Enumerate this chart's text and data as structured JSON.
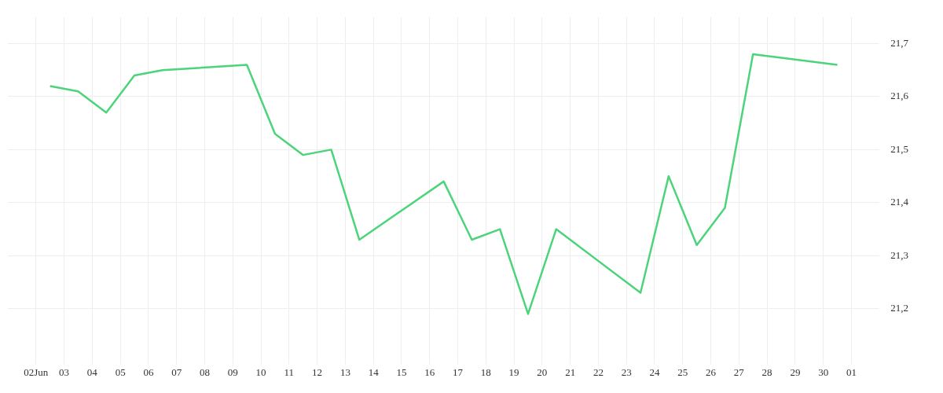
{
  "chart_data": {
    "type": "line",
    "x": [
      "--06-02T12:00",
      "--06-03T12:00",
      "--06-04T12:00",
      "--06-05T12:00",
      "--06-06T12:00",
      "--06-09T12:00",
      "--06-10T12:00",
      "--06-11T12:00",
      "--06-12T12:00",
      "--06-13T12:00",
      "--06-16T12:00",
      "--06-17T12:00",
      "--06-18T12:00",
      "--06-19T12:00",
      "--06-20T12:00",
      "--06-23T12:00",
      "--06-24T12:00",
      "--06-25T12:00",
      "--06-26T12:00",
      "--06-27T12:00",
      "--06-30T12:00"
    ],
    "series": [
      {
        "color": "#4cd47a",
        "values": [
          21.62,
          21.61,
          21.57,
          21.64,
          21.65,
          21.66,
          21.53,
          21.49,
          21.5,
          21.33,
          21.44,
          21.33,
          21.35,
          21.19,
          21.35,
          21.23,
          21.45,
          21.32,
          21.39,
          21.68,
          21.66
        ]
      }
    ],
    "xlim": [
      "--06-01",
      "--07-02"
    ],
    "xticks": [
      {
        "value": "--06-02",
        "label": "02Jun"
      },
      {
        "value": "--06-03",
        "label": "03"
      },
      {
        "value": "--06-04",
        "label": "04"
      },
      {
        "value": "--06-05",
        "label": "05"
      },
      {
        "value": "--06-06",
        "label": "06"
      },
      {
        "value": "--06-07",
        "label": "07"
      },
      {
        "value": "--06-08",
        "label": "08"
      },
      {
        "value": "--06-09",
        "label": "09"
      },
      {
        "value": "--06-10",
        "label": "10"
      },
      {
        "value": "--06-11",
        "label": "11"
      },
      {
        "value": "--06-12",
        "label": "12"
      },
      {
        "value": "--06-13",
        "label": "13"
      },
      {
        "value": "--06-14",
        "label": "14"
      },
      {
        "value": "--06-15",
        "label": "15"
      },
      {
        "value": "--06-16",
        "label": "16"
      },
      {
        "value": "--06-17",
        "label": "17"
      },
      {
        "value": "--06-18",
        "label": "18"
      },
      {
        "value": "--06-19",
        "label": "19"
      },
      {
        "value": "--06-20",
        "label": "20"
      },
      {
        "value": "--06-21",
        "label": "21"
      },
      {
        "value": "--06-22",
        "label": "22"
      },
      {
        "value": "--06-23",
        "label": "23"
      },
      {
        "value": "--06-24",
        "label": "24"
      },
      {
        "value": "--06-25",
        "label": "25"
      },
      {
        "value": "--06-26",
        "label": "26"
      },
      {
        "value": "--06-27",
        "label": "27"
      },
      {
        "value": "--06-28",
        "label": "28"
      },
      {
        "value": "--06-29",
        "label": "29"
      },
      {
        "value": "--06-30",
        "label": "30"
      },
      {
        "value": "--07-01",
        "label": "01"
      }
    ],
    "ylim": [
      21.11,
      21.75
    ],
    "yticks": [
      {
        "value": 21.2,
        "label": "21,2"
      },
      {
        "value": 21.3,
        "label": "21,3"
      },
      {
        "value": 21.4,
        "label": "21,4"
      },
      {
        "value": 21.5,
        "label": "21,5"
      },
      {
        "value": 21.6,
        "label": "21,6"
      },
      {
        "value": 21.7,
        "label": "21,7"
      }
    ],
    "grid": true,
    "legend": false,
    "marker": "none",
    "line_style": "solid"
  }
}
